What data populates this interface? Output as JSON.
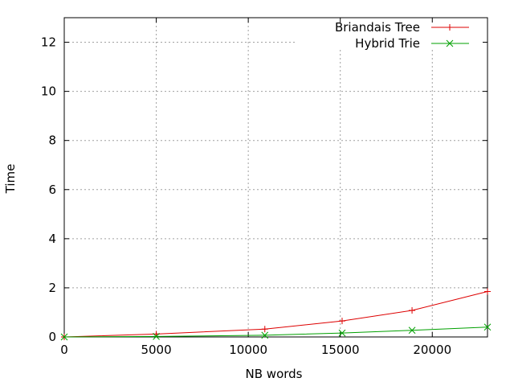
{
  "chart_data": {
    "type": "line",
    "xlabel": "NB words",
    "ylabel": "Time",
    "xlim": [
      0,
      23000
    ],
    "ylim": [
      0,
      13
    ],
    "x_ticks": [
      0,
      5000,
      10000,
      15000,
      20000
    ],
    "y_ticks": [
      0,
      2,
      4,
      6,
      8,
      10,
      12
    ],
    "grid": true,
    "legend_position": "top-right",
    "series": [
      {
        "name": "Briandais Tree",
        "color": "#dd0000",
        "marker": "plus",
        "x": [
          0,
          5000,
          10900,
          15100,
          18900,
          23000
        ],
        "y": [
          0.0,
          0.12,
          0.32,
          0.65,
          1.08,
          1.85
        ]
      },
      {
        "name": "Hybrid Trie",
        "color": "#00a000",
        "marker": "cross",
        "x": [
          0,
          5000,
          10900,
          15100,
          18900,
          23000
        ],
        "y": [
          0.0,
          0.02,
          0.07,
          0.16,
          0.27,
          0.4
        ]
      }
    ]
  }
}
